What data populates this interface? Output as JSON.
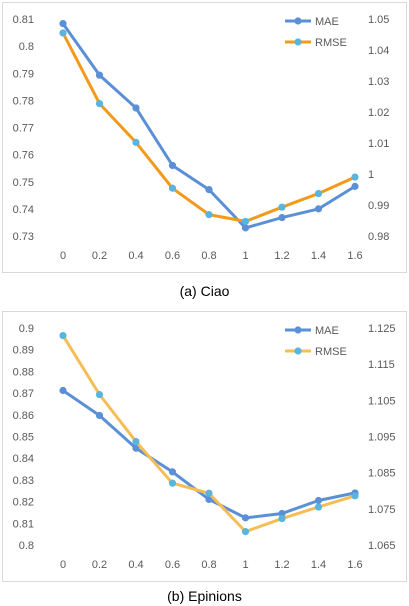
{
  "chart_data": [
    {
      "type": "line",
      "caption": "(a)  Ciao",
      "x": [
        0,
        0.2,
        0.4,
        0.6,
        0.8,
        1,
        1.2,
        1.4,
        1.6
      ],
      "x_tick_labels": [
        "0",
        "0.2",
        "0.4",
        "0.6",
        "0.8",
        "1",
        "1.2",
        "1.4",
        "1.6"
      ],
      "series": [
        {
          "name": "MAE",
          "axis": "left",
          "color": "#5b8fd6",
          "marker_color": "#5b8fd6",
          "values": [
            0.8083,
            0.7893,
            0.7772,
            0.756,
            0.7471,
            0.733,
            0.7368,
            0.74,
            0.7483
          ]
        },
        {
          "name": "RMSE",
          "axis": "right",
          "color": "#f29a1b",
          "marker_color": "#5ab4dc",
          "values": [
            1.0455,
            1.0227,
            1.0102,
            0.9954,
            0.9869,
            0.9847,
            0.9893,
            0.9937,
            0.999
          ]
        }
      ],
      "y_left": {
        "min": 0.73,
        "max": 0.81,
        "step": 0.01,
        "tick_labels": [
          "0.73",
          "0.74",
          "0.75",
          "0.76",
          "0.77",
          "0.78",
          "0.79",
          "0.8",
          "0.81"
        ]
      },
      "y_right": {
        "min": 0.98,
        "max": 1.05,
        "step": 0.01,
        "tick_labels": [
          "0.98",
          "0.99",
          "1",
          "1.01",
          "1.02",
          "1.03",
          "1.04",
          "1.05"
        ]
      },
      "grid": false,
      "legend": "top-right"
    },
    {
      "type": "line",
      "caption": "(b)  Epinions",
      "x": [
        0,
        0.2,
        0.4,
        0.6,
        0.8,
        1,
        1.2,
        1.4,
        1.6
      ],
      "x_tick_labels": [
        "0",
        "0.2",
        "0.4",
        "0.6",
        "0.8",
        "1",
        "1.2",
        "1.4",
        "1.6"
      ],
      "series": [
        {
          "name": "MAE",
          "axis": "left",
          "color": "#5b8fd6",
          "marker_color": "#5b8fd6",
          "values": [
            0.8712,
            0.8597,
            0.8446,
            0.8337,
            0.821,
            0.8125,
            0.8145,
            0.8205,
            0.824
          ]
        },
        {
          "name": "RMSE",
          "axis": "right",
          "color": "#f7bd55",
          "marker_color": "#5ab4dc",
          "values": [
            1.1229,
            1.1066,
            1.0936,
            1.0821,
            1.0793,
            1.0687,
            1.0723,
            1.0755,
            1.0786
          ]
        }
      ],
      "y_left": {
        "min": 0.8,
        "max": 0.9,
        "step": 0.01,
        "tick_labels": [
          "0.8",
          "0.81",
          "0.82",
          "0.83",
          "0.84",
          "0.85",
          "0.86",
          "0.87",
          "0.88",
          "0.89",
          "0.9"
        ]
      },
      "y_right": {
        "min": 1.065,
        "max": 1.125,
        "step": 0.01,
        "tick_labels": [
          "1.065",
          "1.075",
          "1.085",
          "1.095",
          "1.105",
          "1.115",
          "1.125"
        ]
      },
      "grid": false,
      "legend": "top-right"
    }
  ]
}
